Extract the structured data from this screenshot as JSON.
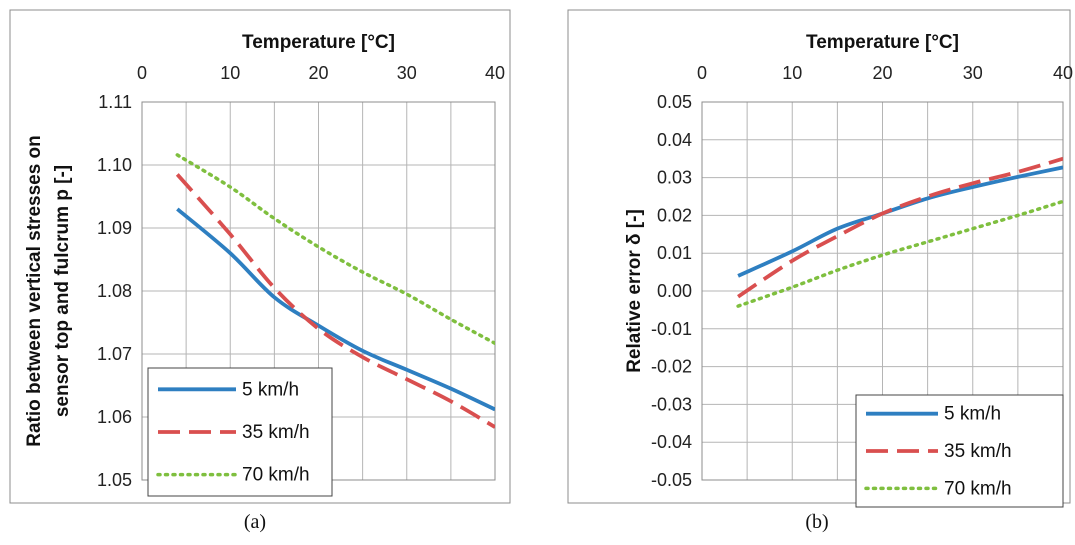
{
  "chart_data": [
    {
      "type": "line",
      "panel_label": "(a)",
      "xlabel": "Temperature [°C]",
      "ylabel_lines": [
        "Ratio between vertical stresses on",
        "sensor top and fulcrum p [-]"
      ],
      "xlim": [
        0,
        40
      ],
      "ylim": [
        1.05,
        1.11
      ],
      "x_ticks": [
        0,
        10,
        20,
        30,
        40
      ],
      "x_tick_labels": [
        "0",
        "10",
        "20",
        "30",
        "40"
      ],
      "y_ticks": [
        1.05,
        1.06,
        1.07,
        1.08,
        1.09,
        1.1,
        1.11
      ],
      "y_tick_labels": [
        "1.05",
        "1.06",
        "1.07",
        "1.08",
        "1.09",
        "1.10",
        "1.11"
      ],
      "x_axis_position": "top",
      "grid": true,
      "legend_position": "bottom-left",
      "series": [
        {
          "name": "5 km/h",
          "color": "#2e7fc1",
          "style": "solid",
          "x": [
            4,
            10,
            15,
            20,
            25,
            30,
            35,
            40
          ],
          "y": [
            1.093,
            1.086,
            1.079,
            1.0745,
            1.0705,
            1.0675,
            1.0645,
            1.0612
          ]
        },
        {
          "name": "35 km/h",
          "color": "#d94f4f",
          "style": "dashed",
          "x": [
            4,
            10,
            15,
            20,
            25,
            30,
            35,
            40
          ],
          "y": [
            1.0985,
            1.089,
            1.0805,
            1.074,
            1.0695,
            1.066,
            1.0625,
            1.0584
          ]
        },
        {
          "name": "70 km/h",
          "color": "#7fbf3f",
          "style": "dotted",
          "x": [
            4,
            10,
            15,
            20,
            25,
            30,
            35,
            40
          ],
          "y": [
            1.1016,
            1.0965,
            1.0915,
            1.087,
            1.083,
            1.0795,
            1.0755,
            1.0717
          ]
        }
      ]
    },
    {
      "type": "line",
      "panel_label": "(b)",
      "xlabel": "Temperature [°C]",
      "ylabel_lines": [
        "Relative error δ [-]"
      ],
      "xlim": [
        0,
        40
      ],
      "ylim": [
        -0.05,
        0.05
      ],
      "x_ticks": [
        0,
        10,
        20,
        30,
        40
      ],
      "x_tick_labels": [
        "0",
        "10",
        "20",
        "30",
        "40"
      ],
      "y_ticks": [
        -0.05,
        -0.04,
        -0.03,
        -0.02,
        -0.01,
        0.0,
        0.01,
        0.02,
        0.03,
        0.04,
        0.05
      ],
      "y_tick_labels": [
        "-0.05",
        "-0.04",
        "-0.03",
        "-0.02",
        "-0.01",
        "0.00",
        "0.01",
        "0.02",
        "0.03",
        "0.04",
        "0.05"
      ],
      "x_axis_position": "top",
      "grid": true,
      "legend_position": "bottom-right",
      "series": [
        {
          "name": "5 km/h",
          "color": "#2e7fc1",
          "style": "solid",
          "x": [
            4,
            10,
            15,
            20,
            25,
            30,
            35,
            40
          ],
          "y": [
            0.004,
            0.0105,
            0.0165,
            0.0205,
            0.0245,
            0.0275,
            0.0302,
            0.0327
          ]
        },
        {
          "name": "35 km/h",
          "color": "#d94f4f",
          "style": "dashed",
          "x": [
            4,
            10,
            15,
            20,
            25,
            30,
            35,
            40
          ],
          "y": [
            -0.0015,
            0.008,
            0.0145,
            0.0205,
            0.025,
            0.0285,
            0.0315,
            0.035
          ]
        },
        {
          "name": "70 km/h",
          "color": "#7fbf3f",
          "style": "dotted",
          "x": [
            4,
            10,
            15,
            20,
            25,
            30,
            35,
            40
          ],
          "y": [
            -0.004,
            0.001,
            0.0055,
            0.0095,
            0.013,
            0.0165,
            0.02,
            0.0237
          ]
        }
      ]
    }
  ]
}
